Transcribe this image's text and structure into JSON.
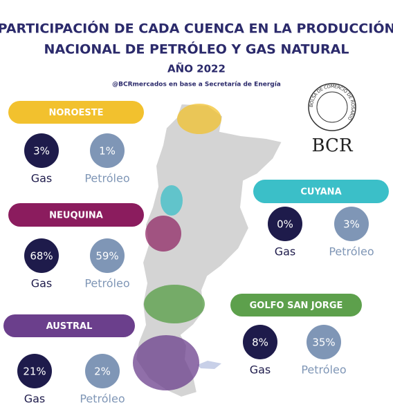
{
  "header": {
    "title_lines": [
      "PARTICIPACIÓN DE CADA CUENCA EN LA PRODUCCIÓN",
      "NACIONAL DE PETRÓLEO Y GAS NATURAL"
    ],
    "year": "AÑO 2022",
    "source": "@BCRmercados en base a Secretaría de Energía"
  },
  "logo": {
    "ring": "BOLSA DE COMERCIO DE ROSARIO",
    "name": "BCR"
  },
  "labels": {
    "gas": "Gas",
    "oil": "Petróleo"
  },
  "basins": [
    {
      "name": "NOROESTE",
      "gas": "3%",
      "oil": "1%"
    },
    {
      "name": "NEUQUINA",
      "gas": "68%",
      "oil": "59%"
    },
    {
      "name": "AUSTRAL",
      "gas": "21%",
      "oil": "2%"
    },
    {
      "name": "CUYANA",
      "gas": "0%",
      "oil": "3%"
    },
    {
      "name": "GOLFO SAN JORGE",
      "gas": "8%",
      "oil": "35%"
    }
  ]
}
